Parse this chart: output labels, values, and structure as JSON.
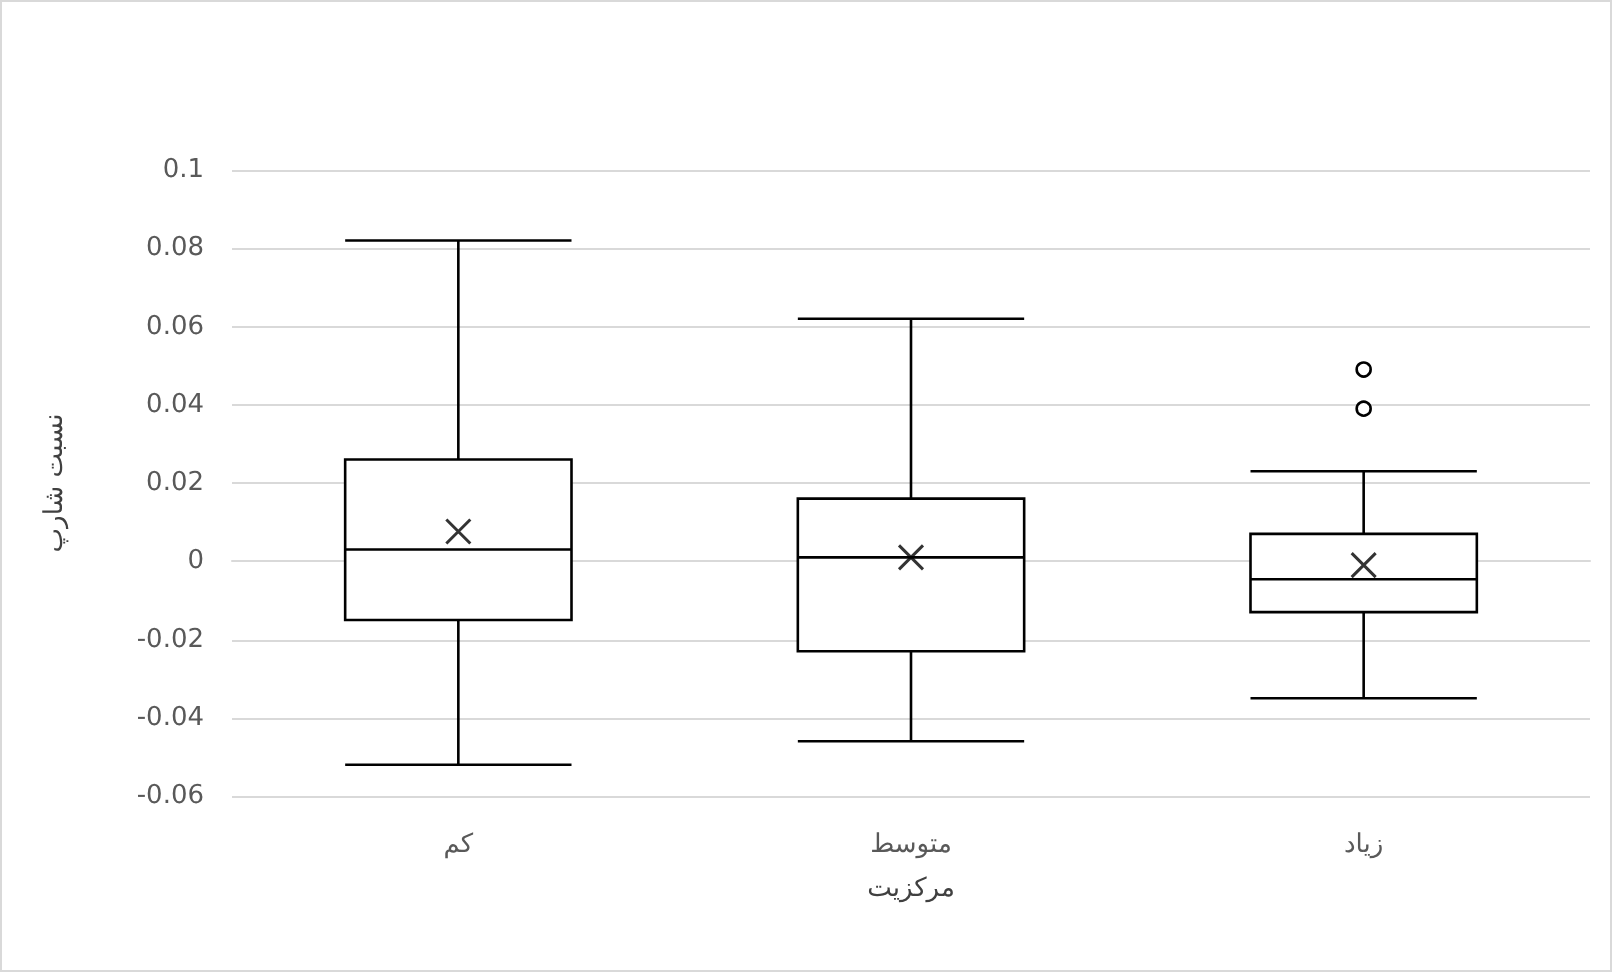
{
  "chart_data": {
    "type": "box",
    "xlabel": "مرکزیت",
    "ylabel": "نسبت شارپ",
    "categories": [
      "کم",
      "متوسط",
      "زیاد"
    ],
    "boxes": [
      {
        "low": -0.052,
        "q1": -0.015,
        "median": 0.003,
        "q3": 0.026,
        "high": 0.082,
        "mean": 0.0076
      },
      {
        "low": -0.046,
        "q1": -0.023,
        "median": 0.001,
        "q3": 0.016,
        "high": 0.062,
        "mean": 0.001
      },
      {
        "low": -0.035,
        "q1": -0.013,
        "median": -0.0046,
        "q3": 0.007,
        "high": 0.023,
        "mean": -0.001,
        "outliers": [
          0.049,
          0.039
        ]
      }
    ],
    "color": "#000000",
    "ylim": [
      -0.06,
      0.1
    ],
    "yticks": [
      -0.06,
      -0.04,
      -0.02,
      0,
      0.02,
      0.04,
      0.06,
      0.08,
      0.1
    ],
    "grid": "y"
  }
}
